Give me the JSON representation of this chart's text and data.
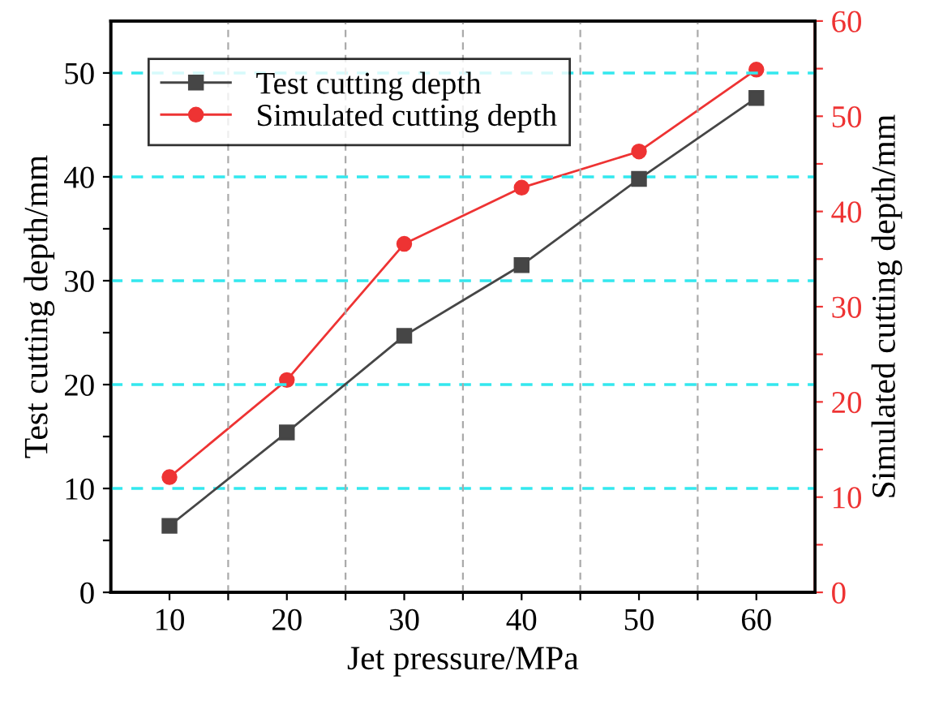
{
  "chart_data": {
    "type": "line",
    "xlabel": "Jet pressure/MPa",
    "ylabel": "Test cutting depth/mm",
    "y2label": "Simulated cutting depth/mm",
    "x": [
      10,
      20,
      30,
      40,
      50,
      60
    ],
    "series": [
      {
        "name": "Test cutting depth",
        "color": "#464646",
        "marker": "square",
        "values": [
          6.4,
          15.4,
          24.7,
          31.5,
          39.8,
          47.6
        ]
      },
      {
        "name": "Simulated cutting depth",
        "color": "#ee3333",
        "marker": "circle",
        "axis": "y2",
        "values": [
          12.1,
          22.3,
          36.6,
          42.5,
          46.3,
          54.9
        ]
      }
    ],
    "xlim": [
      5,
      65
    ],
    "xticks": [
      10,
      {
        "value": 15,
        "label": null
      },
      20,
      {
        "value": 25,
        "label": null
      },
      30,
      {
        "value": 35,
        "label": null
      },
      40,
      {
        "value": 45,
        "label": null
      },
      50,
      {
        "value": 55,
        "label": null
      },
      60
    ],
    "ylim": [
      0,
      55
    ],
    "yticks": [
      0,
      {
        "value": 5,
        "label": null
      },
      10,
      {
        "value": 15,
        "label": null
      },
      20,
      {
        "value": 25,
        "label": null
      },
      30,
      {
        "value": 35,
        "label": null
      },
      40,
      {
        "value": 45,
        "label": null
      },
      50
    ],
    "y2lim": [
      0,
      60
    ],
    "y2ticks": [
      0,
      {
        "value": 5,
        "label": null
      },
      10,
      {
        "value": 15,
        "label": null
      },
      20,
      {
        "value": 25,
        "label": null
      },
      30,
      {
        "value": 35,
        "label": null
      },
      40,
      {
        "value": 45,
        "label": null
      },
      50,
      {
        "value": 55,
        "label": null
      },
      60
    ],
    "grid": true,
    "legend": "top left",
    "line_style": "solid"
  }
}
